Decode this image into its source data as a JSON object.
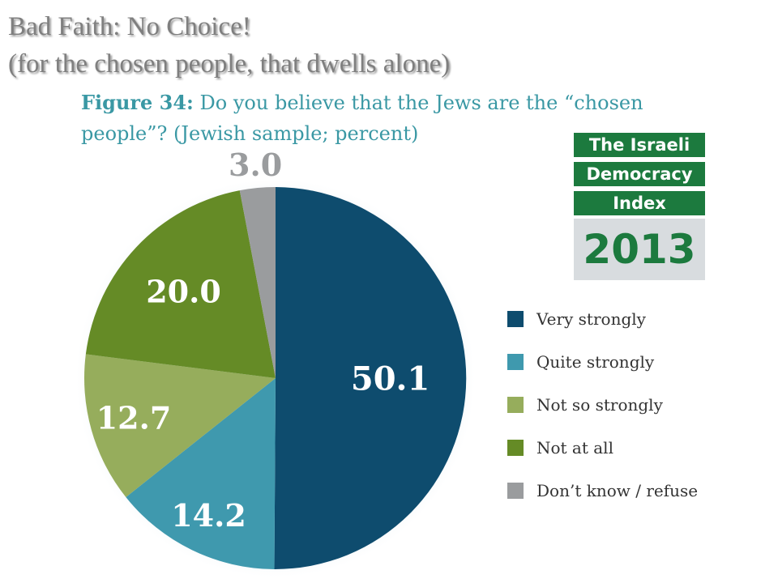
{
  "slide": {
    "title_line_1": "Bad Faith: No Choice!",
    "title_line_2": "(for the chosen people, that dwells alone)"
  },
  "caption": {
    "figure_label": "Figure 34:",
    "line_1_text": " Do you believe that the Jews are the “chosen",
    "line_2_text": "people”? (Jewish sample; percent)"
  },
  "logo": {
    "line_1": "The Israeli",
    "line_2": "Democracy",
    "line_3": "Index",
    "year": "2013"
  },
  "chart_data": {
    "type": "pie",
    "slices": [
      {
        "label": "Very strongly",
        "value": 50.1,
        "value_label": "50.1",
        "color": "#0e4c6e"
      },
      {
        "label": "Quite strongly",
        "value": 14.2,
        "value_label": "14.2",
        "color": "#3f99ae"
      },
      {
        "label": "Not so strongly",
        "value": 12.7,
        "value_label": "12.7",
        "color": "#96ad5c"
      },
      {
        "label": "Not at all",
        "value": 20.0,
        "value_label": "20.0",
        "color": "#658b26"
      },
      {
        "label": "Don’t know / refuse",
        "value": 3.0,
        "value_label": "3.0",
        "color": "#9a9c9e"
      }
    ],
    "legend_position": "right"
  }
}
